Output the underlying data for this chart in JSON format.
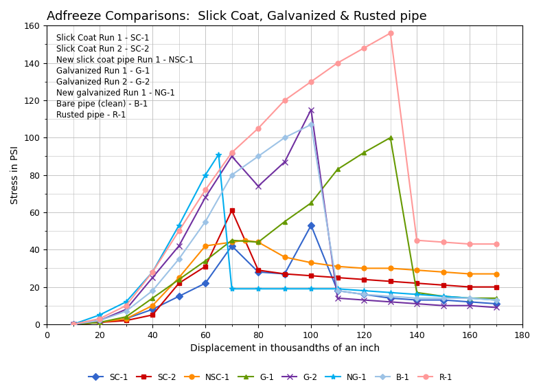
{
  "title": "Adfreeze Comparisons:  Slick Coat, Galvanized & Rusted pipe",
  "xlabel": "Displacement in thousandths of an inch",
  "ylabel": "Stress in PSI",
  "xlim": [
    0,
    180
  ],
  "ylim": [
    0,
    160
  ],
  "xticks": [
    0,
    20,
    40,
    60,
    80,
    100,
    120,
    140,
    160,
    180
  ],
  "yticks": [
    0,
    20,
    40,
    60,
    80,
    100,
    120,
    140,
    160
  ],
  "legend_text": [
    "Slick Coat Run 1 - SC-1",
    "Slick Coat Run 2 - SC-2",
    "New slick coat pipe Run 1 - NSC-1",
    "Galvanized Run 1 - G-1",
    "Galvanized Run 2 - G-2",
    "New galvanized Run 1 - NG-1",
    "Bare pipe (clean) - B-1",
    "Rusted pipe - R-1"
  ],
  "series": {
    "SC-1": {
      "color": "#3366CC",
      "marker": "D",
      "markersize": 5,
      "x": [
        10,
        20,
        30,
        40,
        50,
        60,
        70,
        80,
        90,
        100,
        110,
        120,
        130,
        140,
        150,
        160,
        170
      ],
      "y": [
        0,
        1,
        3,
        8,
        15,
        22,
        42,
        28,
        27,
        53,
        18,
        16,
        14,
        13,
        13,
        12,
        11
      ]
    },
    "SC-2": {
      "color": "#CC0000",
      "marker": "s",
      "markersize": 5,
      "x": [
        10,
        20,
        30,
        40,
        50,
        60,
        70,
        80,
        90,
        100,
        110,
        120,
        130,
        140,
        150,
        160,
        170
      ],
      "y": [
        0,
        1,
        2,
        5,
        22,
        31,
        61,
        29,
        27,
        26,
        25,
        24,
        23,
        22,
        21,
        20,
        20
      ]
    },
    "NSC-1": {
      "color": "#FF8C00",
      "marker": "o",
      "markersize": 5,
      "x": [
        10,
        20,
        30,
        40,
        50,
        60,
        70,
        75,
        80,
        90,
        100,
        110,
        120,
        130,
        140,
        150,
        160,
        170
      ],
      "y": [
        0,
        1,
        3,
        10,
        25,
        42,
        44,
        45,
        44,
        36,
        33,
        31,
        30,
        30,
        29,
        28,
        27,
        27
      ]
    },
    "G-1": {
      "color": "#669900",
      "marker": "^",
      "markersize": 5,
      "x": [
        10,
        20,
        30,
        40,
        50,
        60,
        70,
        80,
        90,
        100,
        110,
        120,
        130,
        140,
        150,
        160,
        170
      ],
      "y": [
        0,
        1,
        4,
        14,
        24,
        34,
        45,
        44,
        55,
        65,
        83,
        92,
        100,
        17,
        15,
        14,
        14
      ]
    },
    "G-2": {
      "color": "#7030A0",
      "marker": "x",
      "markersize": 6,
      "x": [
        10,
        20,
        30,
        40,
        50,
        60,
        70,
        80,
        90,
        100,
        110,
        120,
        130,
        140,
        150,
        160,
        170
      ],
      "y": [
        0,
        2,
        8,
        25,
        42,
        68,
        90,
        74,
        87,
        115,
        14,
        13,
        12,
        11,
        10,
        10,
        9
      ]
    },
    "NG-1": {
      "color": "#00AEEF",
      "marker": "*",
      "markersize": 6,
      "x": [
        10,
        20,
        30,
        40,
        50,
        60,
        65,
        70,
        80,
        90,
        100,
        110,
        120,
        130,
        140,
        150,
        160,
        170
      ],
      "y": [
        0,
        5,
        12,
        28,
        53,
        80,
        91,
        19,
        19,
        19,
        19,
        19,
        18,
        17,
        16,
        15,
        14,
        13
      ]
    },
    "B-1": {
      "color": "#9DC3E6",
      "marker": "D",
      "markersize": 4,
      "x": [
        10,
        20,
        30,
        40,
        50,
        60,
        70,
        80,
        90,
        100,
        110,
        120,
        130,
        140,
        150,
        160,
        170
      ],
      "y": [
        0,
        2,
        7,
        18,
        35,
        55,
        80,
        90,
        100,
        107,
        18,
        16,
        15,
        14,
        14,
        14,
        13
      ]
    },
    "R-1": {
      "color": "#FF9999",
      "marker": "o",
      "markersize": 5,
      "x": [
        10,
        20,
        30,
        40,
        50,
        60,
        70,
        80,
        90,
        100,
        110,
        120,
        130,
        140,
        150,
        160,
        170
      ],
      "y": [
        0,
        3,
        10,
        28,
        50,
        72,
        92,
        105,
        120,
        130,
        140,
        148,
        156,
        45,
        44,
        43,
        43
      ]
    }
  },
  "background_color": "#FFFFFF",
  "grid_color": "#BBBBBB",
  "title_fontsize": 13,
  "axis_fontsize": 10,
  "tick_fontsize": 9,
  "legend_fontsize": 8.5
}
